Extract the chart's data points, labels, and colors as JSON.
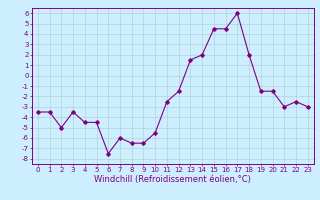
{
  "x": [
    0,
    1,
    2,
    3,
    4,
    5,
    6,
    7,
    8,
    9,
    10,
    11,
    12,
    13,
    14,
    15,
    16,
    17,
    18,
    19,
    20,
    21,
    22,
    23
  ],
  "y": [
    -3.5,
    -3.5,
    -5.0,
    -3.5,
    -4.5,
    -4.5,
    -7.5,
    -6.0,
    -6.5,
    -6.5,
    -5.5,
    -2.5,
    -1.5,
    1.5,
    2.0,
    4.5,
    4.5,
    6.0,
    2.0,
    -1.5,
    -1.5,
    -3.0,
    -2.5,
    -3.0
  ],
  "line_color": "#800080",
  "marker": "D",
  "marker_size": 1.8,
  "line_width": 0.8,
  "bg_color": "#cceeff",
  "grid_color": "#aacccc",
  "xlabel": "Windchill (Refroidissement éolien,°C)",
  "xlabel_fontsize": 6,
  "xlim": [
    -0.5,
    23.5
  ],
  "ylim": [
    -8.5,
    6.5
  ],
  "yticks": [
    -8,
    -7,
    -6,
    -5,
    -4,
    -3,
    -2,
    -1,
    0,
    1,
    2,
    3,
    4,
    5,
    6
  ],
  "xticks": [
    0,
    1,
    2,
    3,
    4,
    5,
    6,
    7,
    8,
    9,
    10,
    11,
    12,
    13,
    14,
    15,
    16,
    17,
    18,
    19,
    20,
    21,
    22,
    23
  ],
  "tick_fontsize": 5,
  "spine_color": "#800080",
  "tick_color": "#800080"
}
